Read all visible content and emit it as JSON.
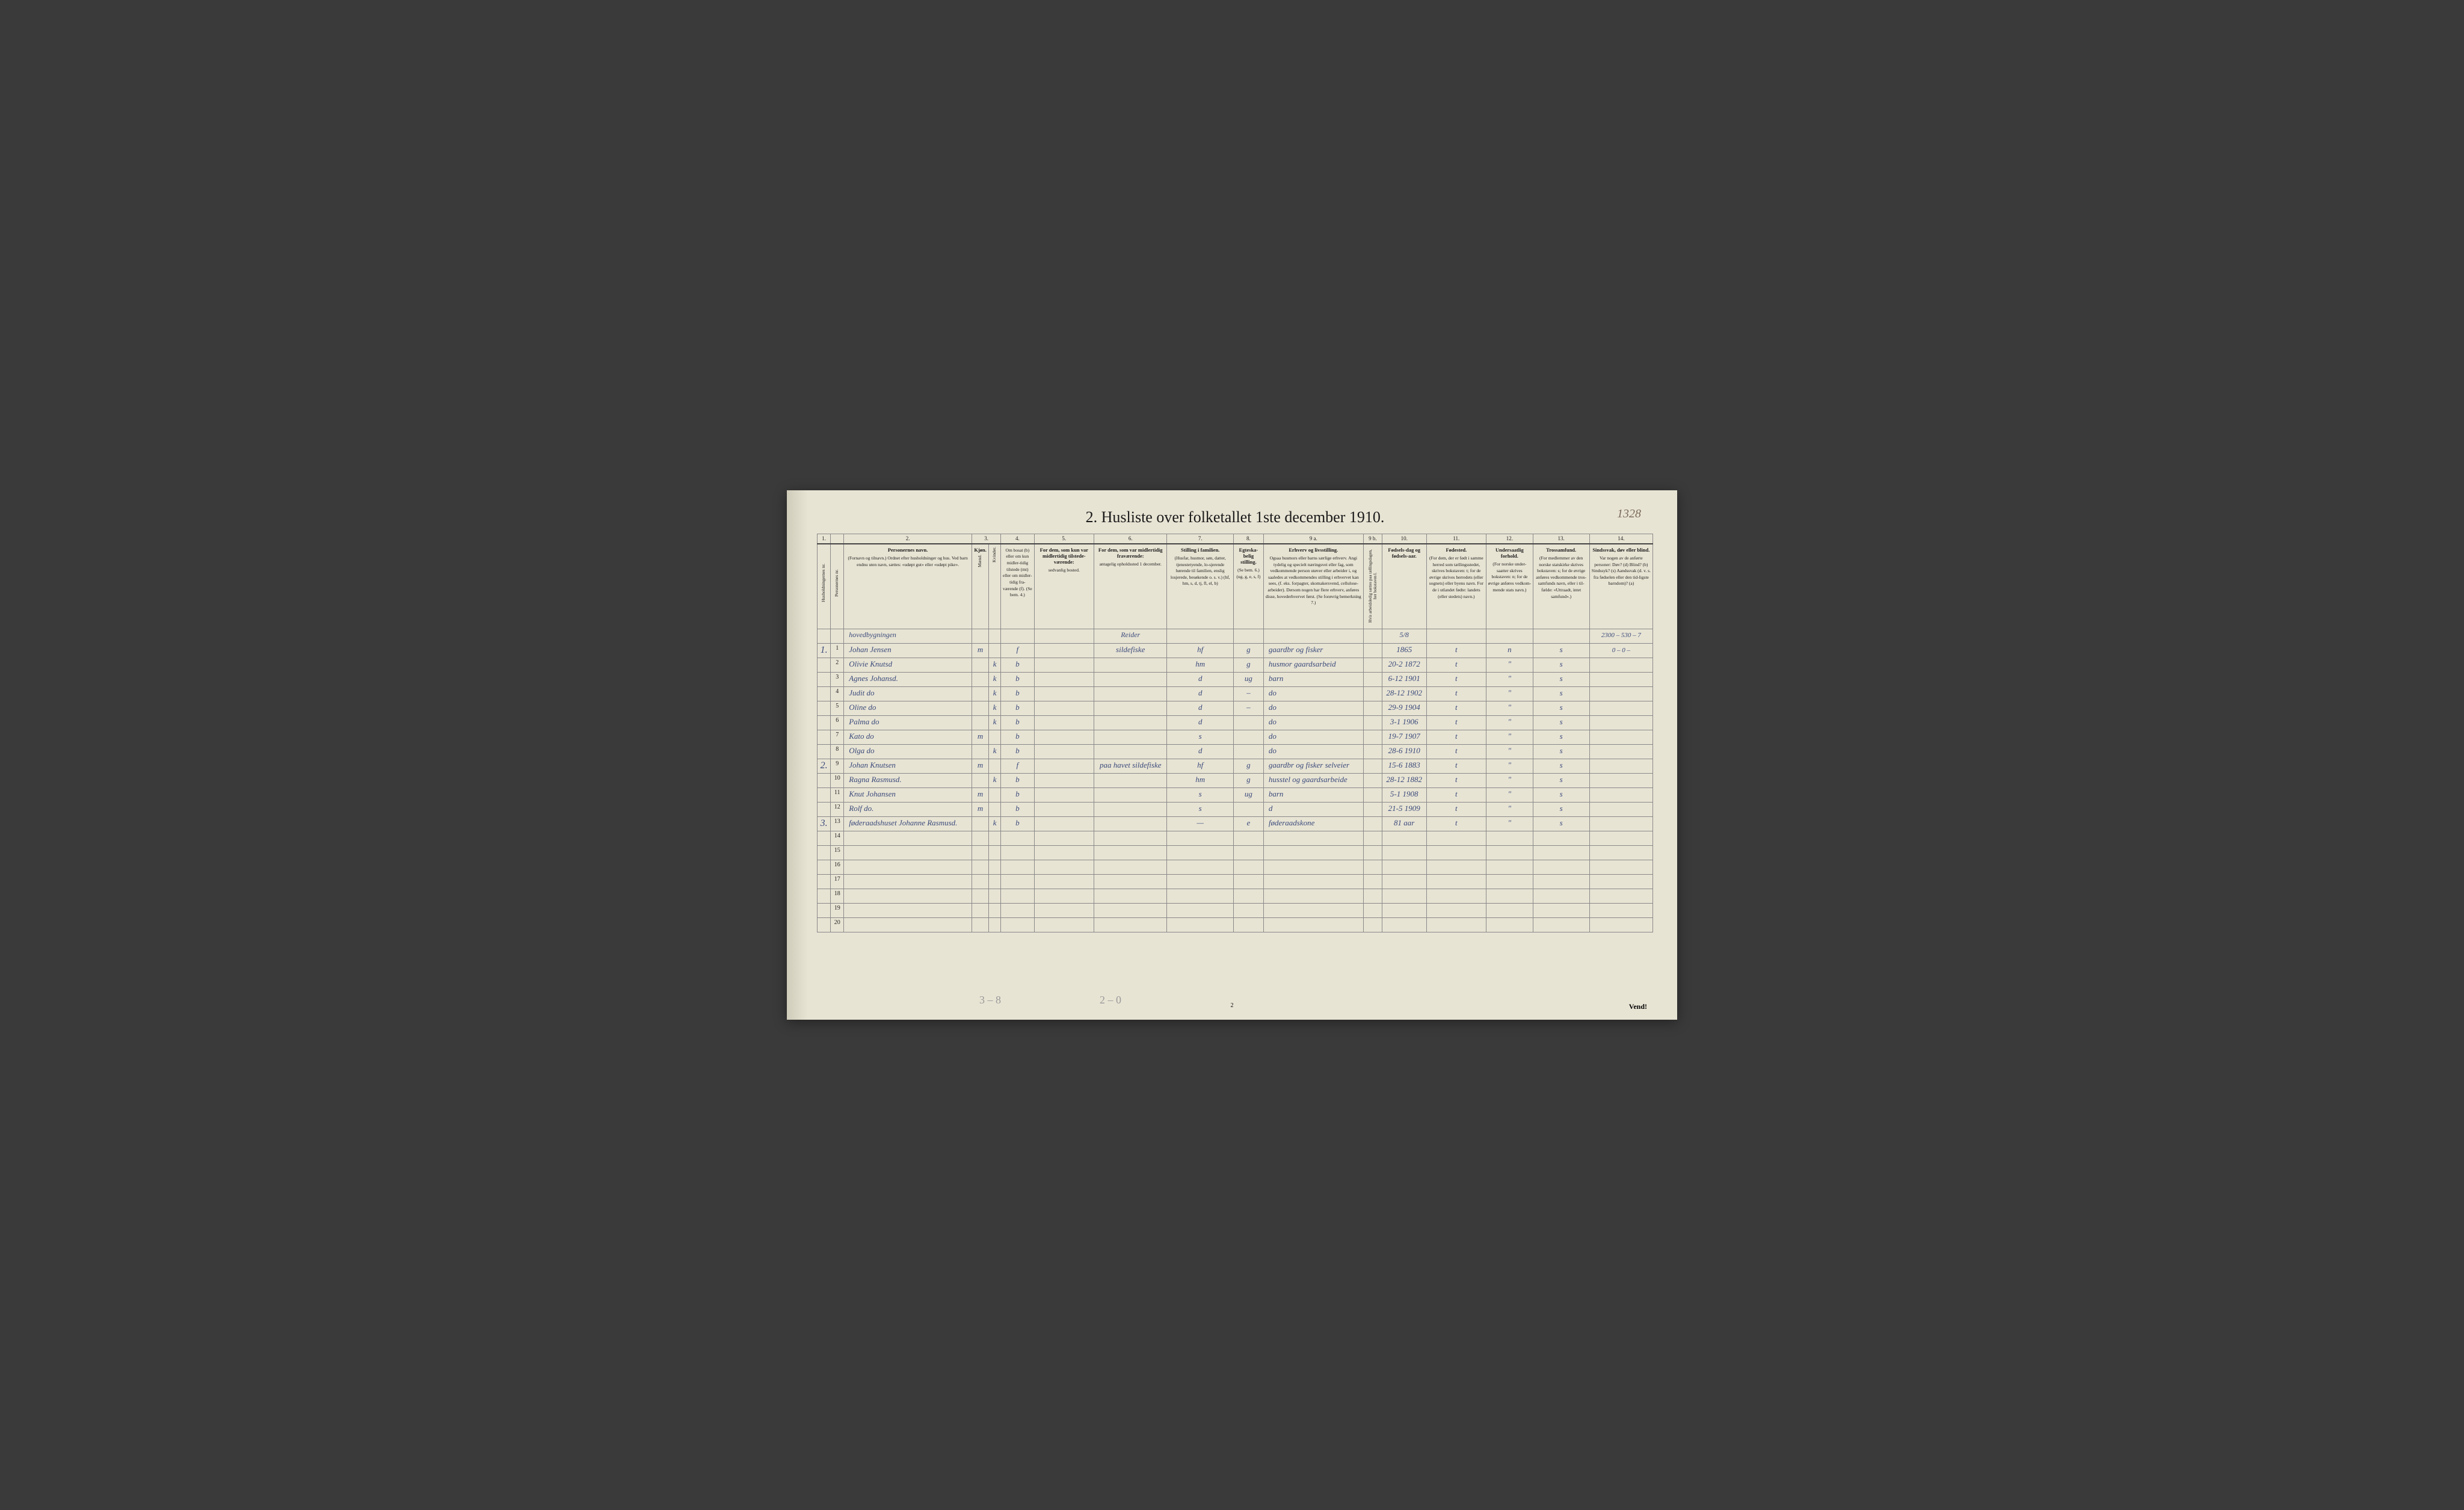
{
  "title": "2.  Husliste over folketallet 1ste december 1910.",
  "page_annotation": "1328",
  "footer_page": "2",
  "footer_right": "Vend!",
  "pencil_left": "3 – 8",
  "pencil_mid": "2 – 0",
  "col_numbers": [
    "1.",
    "",
    "2.",
    "3.",
    "",
    "4.",
    "5.",
    "6.",
    "7.",
    "8.",
    "9 a.",
    "9 b.",
    "10.",
    "11.",
    "12.",
    "13.",
    "14."
  ],
  "headers": {
    "c1": "Husholdningernes nr.",
    "c1b": "Personernes nr.",
    "c2_title": "Personernes navn.",
    "c2_sub": "(Fornavn og tilnavn.)\nOrdnet efter husholdninger og hus.\nVed barn endnu uten navn, sættes: «udøpt gut» eller «udøpt pike».",
    "c3_title": "Kjøn.",
    "c3m": "Mænd.",
    "c3k": "Kvinder.",
    "c3_foot": "m.  k.",
    "c4_title": "Om bosat (b) eller om kun midler-tidig tilstede (mt) eller om midler-tidig fra-værende (f).",
    "c4_foot": "(Se bem. 4.)",
    "c5_title": "For dem, som kun var midlertidig tilstede-værende:",
    "c5_sub": "sedvanlig bosted.",
    "c6_title": "For dem, som var midlertidig fraværende:",
    "c6_sub": "antagelig opholdssted 1 december.",
    "c7_title": "Stilling i familien.",
    "c7_sub": "(Husfar, husmor, søn, datter, tjenestetyende, lo-sjerende hørende til familien, enslig losjerede, besøkende o. s. v.)\n(hf, hm, s, d, tj, fl, el, b)",
    "c8_title": "Egteska-belig stilling.",
    "c8_sub": "(Se bem. 6.)\n(ug, g, e, s, f)",
    "c9a_title": "Erhverv og livsstilling.",
    "c9a_sub": "Ogsaa husmors eller barns særlige erhverv. Angi tydelig og specielt næringsvei eller fag, som vedkommende person utøver eller arbeider i, og saaledes at vedkommendes stilling i erhvervet kan sees, (f. eks. forpagter, skomakersvend, cellulose-arbeider). Dersom nogen har flere erhverv, anføres disse, hovederhvervet først.\n(Se forøvrig bemerkning 7.)",
    "c9b_title": "Hvis arbeidsledig sættes paa tællingsdagen, her bokstaven l.",
    "c10_title": "Fødsels-dag og fødsels-aar.",
    "c11_title": "Fødested.",
    "c11_sub": "(For dem, der er født i samme herred som tællingsstedet, skrives bokstaven: t; for de øvrige skrives herredets (eller sognets) eller byens navn. For de i utlandet fødte: landets (eller stedets) navn.)",
    "c12_title": "Undersaatlig forhold.",
    "c12_sub": "(For norske under-saatter skrives bokstaven: n; for de øvrige anføres vedkom-mende stats navn.)",
    "c13_title": "Trossamfund.",
    "c13_sub": "(For medlemmer av den norske statskirke skrives bokstaven: s; for de øvrige anføres vedkommende tros-samfunds navn, eller i til-fælde: «Uttraadt, intet samfund».)",
    "c14_title": "Sindssvak, døv eller blind.",
    "c14_sub": "Var nogen av de anførte personer:\nDøv?     (d)\nBlind?   (b)\nSindssyk? (s)\nAandssvak (d. v. s. fra fødselen eller den tid-ligste barndom)? (a)"
  },
  "margin_calc": [
    "2300 – 530 – 7",
    "0 – 0 –"
  ],
  "rows": [
    {
      "hh": "",
      "n": "",
      "name": "hovedbygningen",
      "m": "",
      "k": "",
      "b": "",
      "c5": "",
      "c6": "Reider",
      "c7": "",
      "c8": "",
      "c9": "",
      "c9b": "",
      "dob": "5/8",
      "c11": "",
      "c12": "",
      "c13": "",
      "c14": "",
      "heading": true
    },
    {
      "hh": "1.",
      "n": "1",
      "name": "Johan Jensen",
      "m": "m",
      "k": "",
      "b": "f",
      "c5": "",
      "c6": "sildefiske",
      "c7": "hf",
      "c8": "g",
      "c9": "gaardbr og fisker",
      "c9b": "",
      "dob": "1865",
      "c11": "t",
      "c12": "n",
      "c13": "s",
      "c14": ""
    },
    {
      "hh": "",
      "n": "2",
      "name": "Olivie Knutsd",
      "m": "",
      "k": "k",
      "b": "b",
      "c5": "",
      "c6": "",
      "c7": "hm",
      "c8": "g",
      "c9": "husmor gaardsarbeid",
      "c9b": "",
      "dob": "20-2 1872",
      "c11": "t",
      "c12": "\"",
      "c13": "s",
      "c14": ""
    },
    {
      "hh": "",
      "n": "3",
      "name": "Agnes Johansd.",
      "m": "",
      "k": "k",
      "b": "b",
      "c5": "",
      "c6": "",
      "c7": "d",
      "c8": "ug",
      "c9": "barn",
      "c9b": "",
      "dob": "6-12 1901",
      "c11": "t",
      "c12": "\"",
      "c13": "s",
      "c14": ""
    },
    {
      "hh": "",
      "n": "4",
      "name": "Judit   do",
      "m": "",
      "k": "k",
      "b": "b",
      "c5": "",
      "c6": "",
      "c7": "d",
      "c8": "–",
      "c9": "do",
      "c9b": "",
      "dob": "28-12 1902",
      "c11": "t",
      "c12": "\"",
      "c13": "s",
      "c14": ""
    },
    {
      "hh": "",
      "n": "5",
      "name": "Oline   do",
      "m": "",
      "k": "k",
      "b": "b",
      "c5": "",
      "c6": "",
      "c7": "d",
      "c8": "–",
      "c9": "do",
      "c9b": "",
      "dob": "29-9 1904",
      "c11": "t",
      "c12": "\"",
      "c13": "s",
      "c14": ""
    },
    {
      "hh": "",
      "n": "6",
      "name": "Palma   do",
      "m": "",
      "k": "k",
      "b": "b",
      "c5": "",
      "c6": "",
      "c7": "d",
      "c8": "",
      "c9": "do",
      "c9b": "",
      "dob": "3-1 1906",
      "c11": "t",
      "c12": "\"",
      "c13": "s",
      "c14": ""
    },
    {
      "hh": "",
      "n": "7",
      "name": "Kato    do",
      "m": "m",
      "k": "",
      "b": "b",
      "c5": "",
      "c6": "",
      "c7": "s",
      "c8": "",
      "c9": "do",
      "c9b": "",
      "dob": "19-7 1907",
      "c11": "t",
      "c12": "\"",
      "c13": "s",
      "c14": ""
    },
    {
      "hh": "",
      "n": "8",
      "name": "Olga    do",
      "m": "",
      "k": "k",
      "b": "b",
      "c5": "",
      "c6": "",
      "c7": "d",
      "c8": "",
      "c9": "do",
      "c9b": "",
      "dob": "28-6 1910",
      "c11": "t",
      "c12": "\"",
      "c13": "s",
      "c14": ""
    },
    {
      "hh": "2.",
      "n": "9",
      "name": "Johan Knutsen",
      "m": "m",
      "k": "",
      "b": "f",
      "c5": "",
      "c6": "paa havet sildefiske",
      "c7": "hf",
      "c8": "g",
      "c9": "gaardbr og fisker selveier",
      "c9b": "",
      "dob": "15-6 1883",
      "c11": "t",
      "c12": "\"",
      "c13": "s",
      "c14": ""
    },
    {
      "hh": "",
      "n": "10",
      "name": "Ragna Rasmusd.",
      "m": "",
      "k": "k",
      "b": "b",
      "c5": "",
      "c6": "",
      "c7": "hm",
      "c8": "g",
      "c9": "husstel og gaardsarbeide",
      "c9b": "",
      "dob": "28-12 1882",
      "c11": "t",
      "c12": "\"",
      "c13": "s",
      "c14": ""
    },
    {
      "hh": "",
      "n": "11",
      "name": "Knut Johansen",
      "m": "m",
      "k": "",
      "b": "b",
      "c5": "",
      "c6": "",
      "c7": "s",
      "c8": "ug",
      "c9": "barn",
      "c9b": "",
      "dob": "5-1 1908",
      "c11": "t",
      "c12": "\"",
      "c13": "s",
      "c14": ""
    },
    {
      "hh": "",
      "n": "12",
      "name": "Rolf   do.",
      "m": "m",
      "k": "",
      "b": "b",
      "c5": "",
      "c6": "",
      "c7": "s",
      "c8": "",
      "c9": "d",
      "c9b": "",
      "dob": "21-5 1909",
      "c11": "t",
      "c12": "\"",
      "c13": "s",
      "c14": ""
    },
    {
      "hh": "3.",
      "n": "13",
      "name": "føderaadshuset Johanne Rasmusd.",
      "m": "",
      "k": "k",
      "b": "b",
      "c5": "",
      "c6": "",
      "c7": "—",
      "c8": "e",
      "c9": "føderaadskone",
      "c9b": "",
      "dob": "81 aar",
      "c11": "t",
      "c12": "\"",
      "c13": "s",
      "c14": ""
    }
  ],
  "empty_rows": [
    14,
    15,
    16,
    17,
    18,
    19,
    20
  ],
  "colors": {
    "paper": "#e8e4d4",
    "ink_print": "#1a1a1a",
    "ink_hand": "#3a4a7a",
    "rule": "#888",
    "pencil": "#999",
    "background": "#3a3a3a"
  }
}
